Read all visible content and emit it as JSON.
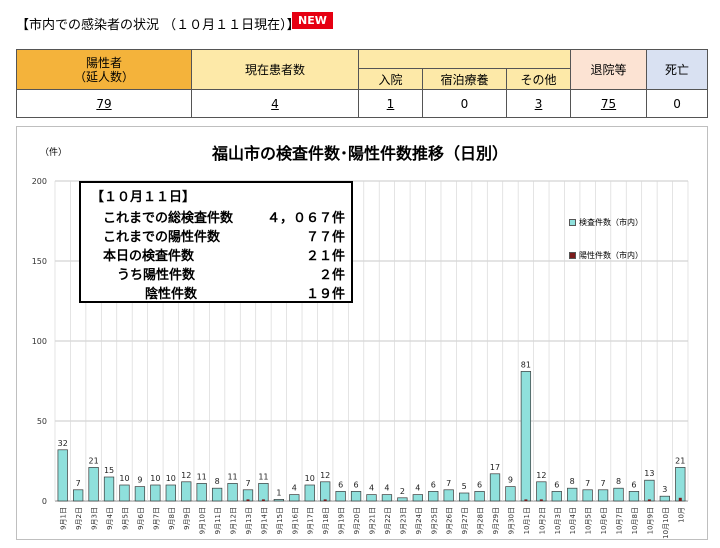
{
  "header": {
    "title": "【市内での感染者の状況 （１０月１１日現在）】",
    "new_badge": "NEW"
  },
  "summary": {
    "positives_label": "陽性者\n（延人数）",
    "current_label": "現在患者数",
    "hospital_label": "入院",
    "hotel_label": "宿泊療養",
    "other_label": "その他",
    "discharged_label": "退院等",
    "death_label": "死亡",
    "positives": "79",
    "current": "4",
    "hospital": "1",
    "hotel": "0",
    "other": "3",
    "discharged": "75",
    "death": "0"
  },
  "note": {
    "date": "【１０月１１日】",
    "rows": [
      {
        "label": "これまでの総検査件数",
        "value": "４，０６７件"
      },
      {
        "label": "これまでの陽性件数",
        "value": "７７件"
      },
      {
        "label": "本日の検査件数",
        "value": "２１件"
      },
      {
        "label": "うち陽性件数",
        "value": "２件"
      },
      {
        "label": "陰性件数",
        "value": "１９件"
      }
    ]
  },
  "colors": {
    "tests": "#8fe0dc",
    "positives": "#7b1a1a",
    "header_orange": "#f4b33b"
  },
  "chart_data": {
    "type": "bar",
    "title": "福山市の検査件数･陽性件数推移（日別）",
    "ylabel": "（件）",
    "ylim": [
      0,
      200
    ],
    "yticks": [
      0,
      50,
      100,
      150,
      200
    ],
    "grid": true,
    "legend_position": "right",
    "categories": [
      "9月1日",
      "9月2日",
      "9月3日",
      "9月4日",
      "9月5日",
      "9月6日",
      "9月7日",
      "9月8日",
      "9月9日",
      "9月10日",
      "9月11日",
      "9月12日",
      "9月13日",
      "9月14日",
      "9月15日",
      "9月16日",
      "9月17日",
      "9月18日",
      "9月19日",
      "9月20日",
      "9月21日",
      "9月22日",
      "9月23日",
      "9月24日",
      "9月25日",
      "9月26日",
      "9月27日",
      "9月28日",
      "9月29日",
      "9月30日",
      "10月1日",
      "10月2日",
      "10月3日",
      "10月4日",
      "10月5日",
      "10月6日",
      "10月7日",
      "10月8日",
      "10月9日",
      "10月10日",
      "10月"
    ],
    "series": [
      {
        "name": "検査件数（市内）",
        "values": [
          32,
          7,
          21,
          15,
          10,
          9,
          10,
          10,
          12,
          11,
          8,
          11,
          7,
          11,
          1,
          4,
          10,
          12,
          6,
          6,
          4,
          4,
          2,
          4,
          6,
          7,
          5,
          6,
          17,
          9,
          81,
          12,
          6,
          8,
          7,
          7,
          8,
          6,
          13,
          3,
          21
        ]
      },
      {
        "name": "陽性件数（市内）",
        "values": [
          0,
          0,
          0,
          0,
          0,
          0,
          0,
          0,
          0,
          0,
          0,
          0,
          1,
          1,
          0,
          0,
          0,
          1,
          0,
          0,
          0,
          0,
          0,
          0,
          0,
          0,
          0,
          0,
          0,
          0,
          1,
          1,
          0,
          0,
          0,
          0,
          0,
          0,
          1,
          0,
          2
        ]
      }
    ]
  }
}
